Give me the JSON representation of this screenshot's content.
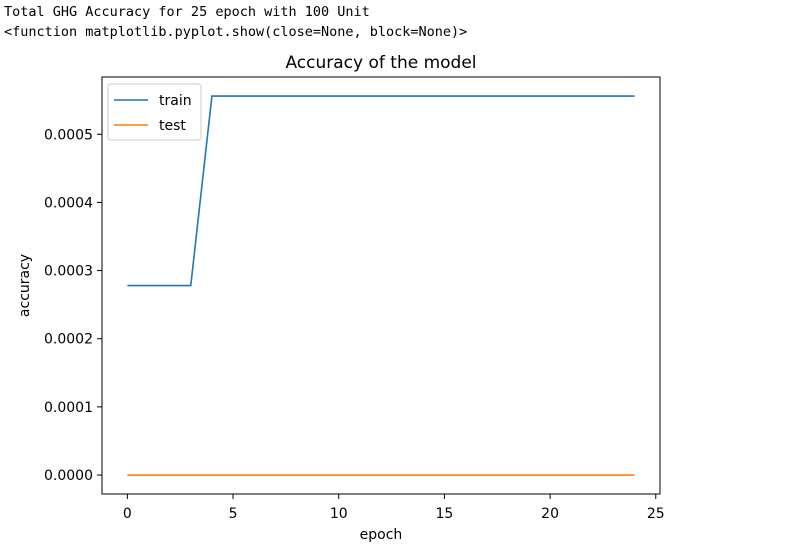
{
  "console": {
    "line1": "Total GHG Accuracy for 25 epoch with 100 Unit",
    "line2": "<function matplotlib.pyplot.show(close=None, block=None)>"
  },
  "chart_data": {
    "type": "line",
    "title": "Accuracy of the model",
    "xlabel": "epoch",
    "ylabel": "accuracy",
    "xlim": [
      -1.2,
      25.2
    ],
    "ylim": [
      -2.78e-05,
      0.000584
    ],
    "xticks": [
      0,
      5,
      10,
      15,
      20,
      25
    ],
    "xtick_labels": [
      "0",
      "5",
      "10",
      "15",
      "20",
      "25"
    ],
    "yticks": [
      0,
      0.0001,
      0.0002,
      0.0003,
      0.0004,
      0.0005
    ],
    "ytick_labels": [
      "0.0000",
      "0.0001",
      "0.0002",
      "0.0003",
      "0.0004",
      "0.0005"
    ],
    "grid": false,
    "legend": "upper-left",
    "x": [
      0,
      1,
      2,
      3,
      4,
      5,
      6,
      7,
      8,
      9,
      10,
      11,
      12,
      13,
      14,
      15,
      16,
      17,
      18,
      19,
      20,
      21,
      22,
      23,
      24
    ],
    "series": [
      {
        "name": "train",
        "color": "#1f77b4",
        "values": [
          0.000278,
          0.000278,
          0.000278,
          0.000278,
          0.000556,
          0.000556,
          0.000556,
          0.000556,
          0.000556,
          0.000556,
          0.000556,
          0.000556,
          0.000556,
          0.000556,
          0.000556,
          0.000556,
          0.000556,
          0.000556,
          0.000556,
          0.000556,
          0.000556,
          0.000556,
          0.000556,
          0.000556,
          0.000556
        ]
      },
      {
        "name": "test",
        "color": "#ff7f0e",
        "values": [
          0,
          0,
          0,
          0,
          0,
          0,
          0,
          0,
          0,
          0,
          0,
          0,
          0,
          0,
          0,
          0,
          0,
          0,
          0,
          0,
          0,
          0,
          0,
          0,
          0
        ]
      }
    ]
  }
}
